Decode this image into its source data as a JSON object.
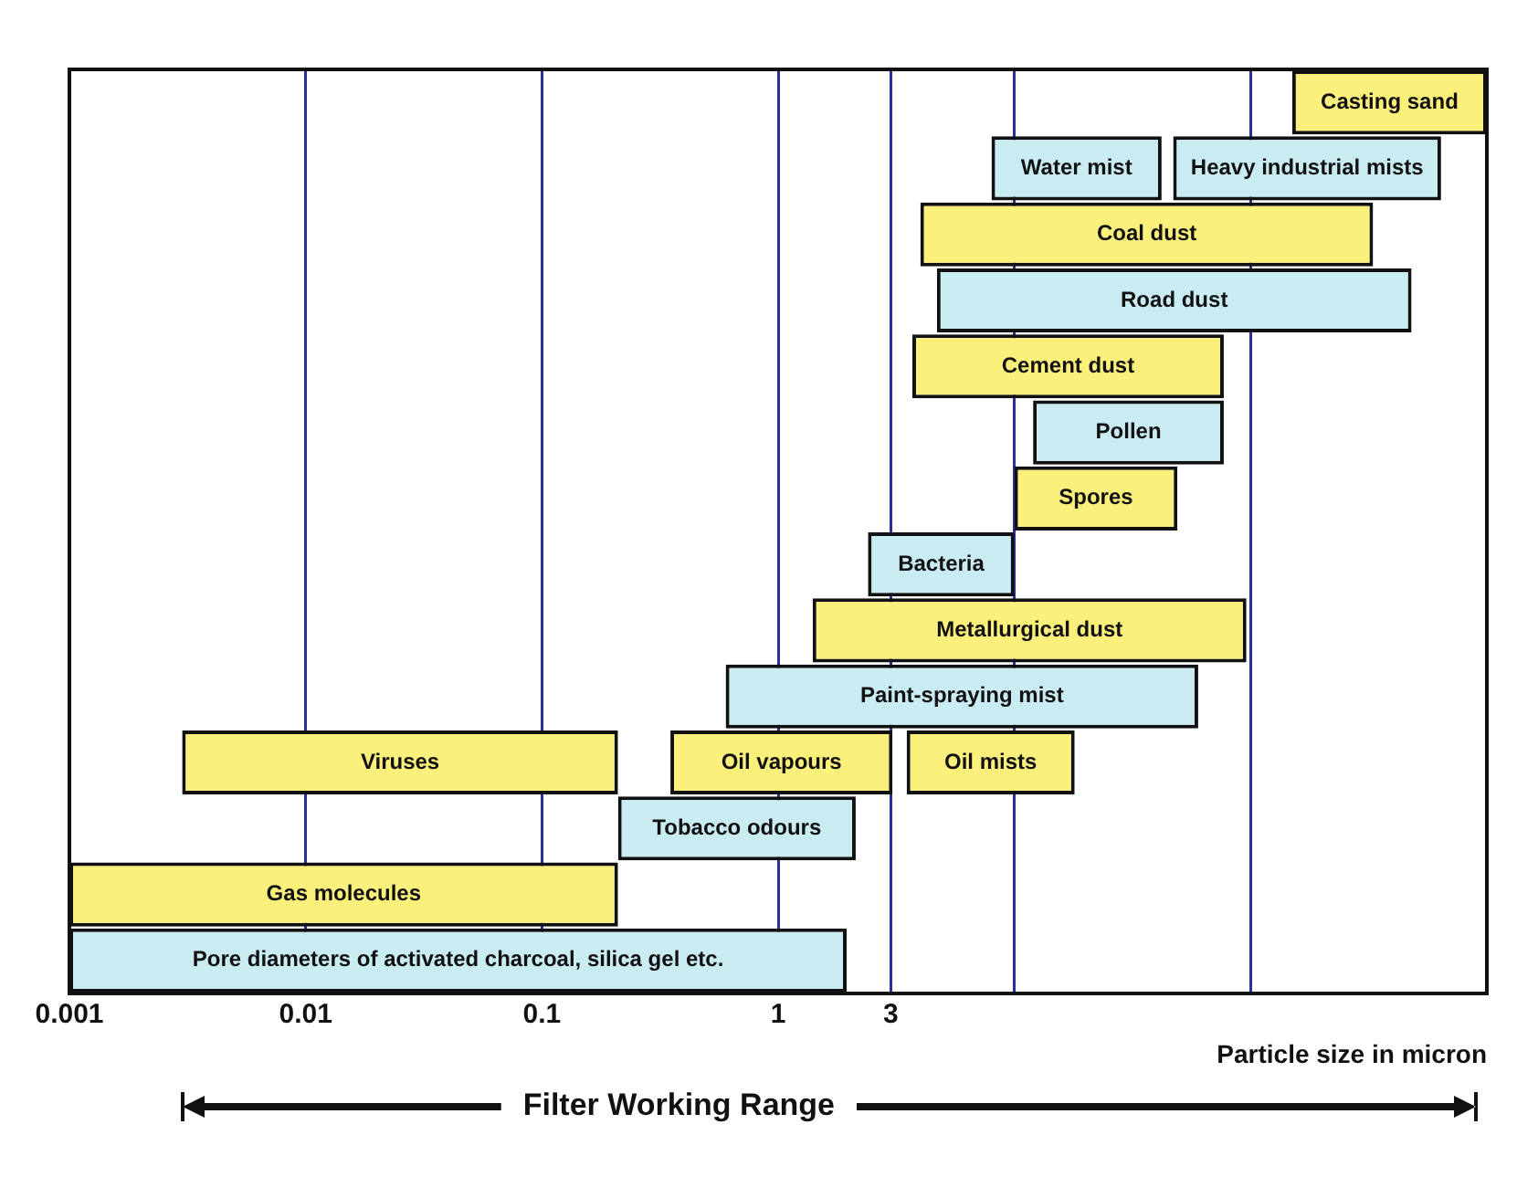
{
  "chart_data": {
    "type": "bar",
    "orientation": "horizontal",
    "xlabel": "Particle size in micron",
    "annotations": [
      "Filter Working Range"
    ],
    "categories": [
      null,
      null,
      null,
      null,
      null,
      null,
      null,
      null,
      null,
      null,
      null,
      null,
      null,
      null
    ],
    "xlim": [
      0.001,
      1000
    ],
    "xticks": [
      0.001,
      0.01,
      0.1,
      1,
      3,
      {
        "value": 10,
        "label": null
      },
      {
        "value": 100,
        "label": null
      }
    ],
    "grid": "x",
    "legend": false,
    "tick_labels": "x",
    "log": "x",
    "series": [
      {
        "name": "Casting sand",
        "color": "#fcf07c",
        "base": [
          150,
          null,
          null,
          null,
          null,
          null,
          null,
          null,
          null,
          null,
          null,
          null,
          null,
          null
        ],
        "values": [
          850,
          null,
          null,
          null,
          null,
          null,
          null,
          null,
          null,
          null,
          null,
          null,
          null,
          null
        ]
      },
      {
        "name": "Water mist",
        "color": "#c9ecf3",
        "base": [
          null,
          8,
          null,
          null,
          null,
          null,
          null,
          null,
          null,
          null,
          null,
          null,
          null,
          null
        ],
        "values": [
          null,
          34,
          null,
          null,
          null,
          null,
          null,
          null,
          null,
          null,
          null,
          null,
          null,
          null
        ]
      },
      {
        "name": "Heavy industrial mists",
        "color": "#c9ecf3",
        "base": [
          null,
          47,
          null,
          null,
          null,
          null,
          null,
          null,
          null,
          null,
          null,
          null,
          null,
          null
        ],
        "values": [
          null,
          593,
          null,
          null,
          null,
          null,
          null,
          null,
          null,
          null,
          null,
          null,
          null,
          null
        ]
      },
      {
        "name": "Coal dust",
        "color": "#fcf07c",
        "base": [
          null,
          null,
          4,
          null,
          null,
          null,
          null,
          null,
          null,
          null,
          null,
          null,
          null,
          null
        ],
        "values": [
          null,
          null,
          326,
          null,
          null,
          null,
          null,
          null,
          null,
          null,
          null,
          null,
          null,
          null
        ]
      },
      {
        "name": "Road dust",
        "color": "#c9ecf3",
        "base": [
          null,
          null,
          null,
          4.7,
          null,
          null,
          null,
          null,
          null,
          null,
          null,
          null,
          null,
          null
        ],
        "values": [
          null,
          null,
          null,
          475.3,
          null,
          null,
          null,
          null,
          null,
          null,
          null,
          null,
          null,
          null
        ]
      },
      {
        "name": "Cement dust",
        "color": "#fcf07c",
        "base": [
          null,
          null,
          null,
          null,
          3.7,
          null,
          null,
          null,
          null,
          null,
          null,
          null,
          null,
          null
        ],
        "values": [
          null,
          null,
          null,
          null,
          73.3,
          null,
          null,
          null,
          null,
          null,
          null,
          null,
          null,
          null
        ]
      },
      {
        "name": "Pollen",
        "color": "#c9ecf3",
        "base": [
          null,
          null,
          null,
          null,
          null,
          12,
          null,
          null,
          null,
          null,
          null,
          null,
          null,
          null
        ],
        "values": [
          null,
          null,
          null,
          null,
          null,
          65,
          null,
          null,
          null,
          null,
          null,
          null,
          null,
          null
        ]
      },
      {
        "name": "Spores",
        "color": "#fcf07c",
        "base": [
          null,
          null,
          null,
          null,
          null,
          null,
          10,
          null,
          null,
          null,
          null,
          null,
          null,
          null
        ],
        "values": [
          null,
          null,
          null,
          null,
          null,
          null,
          39,
          null,
          null,
          null,
          null,
          null,
          null,
          null
        ]
      },
      {
        "name": "Bacteria",
        "color": "#c9ecf3",
        "base": [
          null,
          null,
          null,
          null,
          null,
          null,
          null,
          2.4,
          null,
          null,
          null,
          null,
          null,
          null
        ],
        "values": [
          null,
          null,
          null,
          null,
          null,
          null,
          null,
          7.6,
          null,
          null,
          null,
          null,
          null,
          null
        ]
      },
      {
        "name": "Metallurgical dust",
        "color": "#fcf07c",
        "base": [
          null,
          null,
          null,
          null,
          null,
          null,
          null,
          null,
          1.4,
          null,
          null,
          null,
          null,
          null
        ],
        "values": [
          null,
          null,
          null,
          null,
          null,
          null,
          null,
          null,
          94.6,
          null,
          null,
          null,
          null,
          null
        ]
      },
      {
        "name": "Paint-spraying mist",
        "color": "#c9ecf3",
        "base": [
          null,
          null,
          null,
          null,
          null,
          null,
          null,
          null,
          null,
          0.6,
          null,
          null,
          null,
          null
        ],
        "values": [
          null,
          null,
          null,
          null,
          null,
          null,
          null,
          null,
          null,
          59.4,
          null,
          null,
          null,
          null
        ]
      },
      {
        "name": "Viruses",
        "color": "#fcf07c",
        "base": [
          null,
          null,
          null,
          null,
          null,
          null,
          null,
          null,
          null,
          null,
          0.003,
          null,
          null,
          null
        ],
        "values": [
          null,
          null,
          null,
          null,
          null,
          null,
          null,
          null,
          null,
          null,
          0.207,
          null,
          null,
          null
        ]
      },
      {
        "name": "Oil vapours",
        "color": "#fcf07c",
        "base": [
          null,
          null,
          null,
          null,
          null,
          null,
          null,
          null,
          null,
          null,
          0.35,
          null,
          null,
          null
        ],
        "values": [
          null,
          null,
          null,
          null,
          null,
          null,
          null,
          null,
          null,
          null,
          2.7,
          null,
          null,
          null
        ]
      },
      {
        "name": "Oil mists",
        "color": "#fcf07c",
        "base": [
          null,
          null,
          null,
          null,
          null,
          null,
          null,
          null,
          null,
          null,
          3.5,
          null,
          null,
          null
        ],
        "values": [
          null,
          null,
          null,
          null,
          null,
          null,
          null,
          null,
          null,
          null,
          14.5,
          null,
          null,
          null
        ]
      },
      {
        "name": "Tobacco odours",
        "color": "#c9ecf3",
        "base": [
          null,
          null,
          null,
          null,
          null,
          null,
          null,
          null,
          null,
          null,
          null,
          0.21,
          null,
          null
        ],
        "values": [
          null,
          null,
          null,
          null,
          null,
          null,
          null,
          null,
          null,
          null,
          null,
          1.92,
          null,
          null
        ]
      },
      {
        "name": "Gas molecules",
        "color": "#fcf07c",
        "base": [
          null,
          null,
          null,
          null,
          null,
          null,
          null,
          null,
          null,
          null,
          null,
          null,
          0.001,
          null
        ],
        "values": [
          null,
          null,
          null,
          null,
          null,
          null,
          null,
          null,
          null,
          null,
          null,
          null,
          0.209,
          null
        ]
      },
      {
        "name": "Pore diameters of activated charcoal, silica gel etc.",
        "color": "#c9ecf3",
        "base": [
          null,
          null,
          null,
          null,
          null,
          null,
          null,
          null,
          null,
          null,
          null,
          null,
          null,
          0.001
        ],
        "values": [
          null,
          null,
          null,
          null,
          null,
          null,
          null,
          null,
          null,
          null,
          null,
          null,
          null,
          1.949
        ]
      }
    ]
  }
}
